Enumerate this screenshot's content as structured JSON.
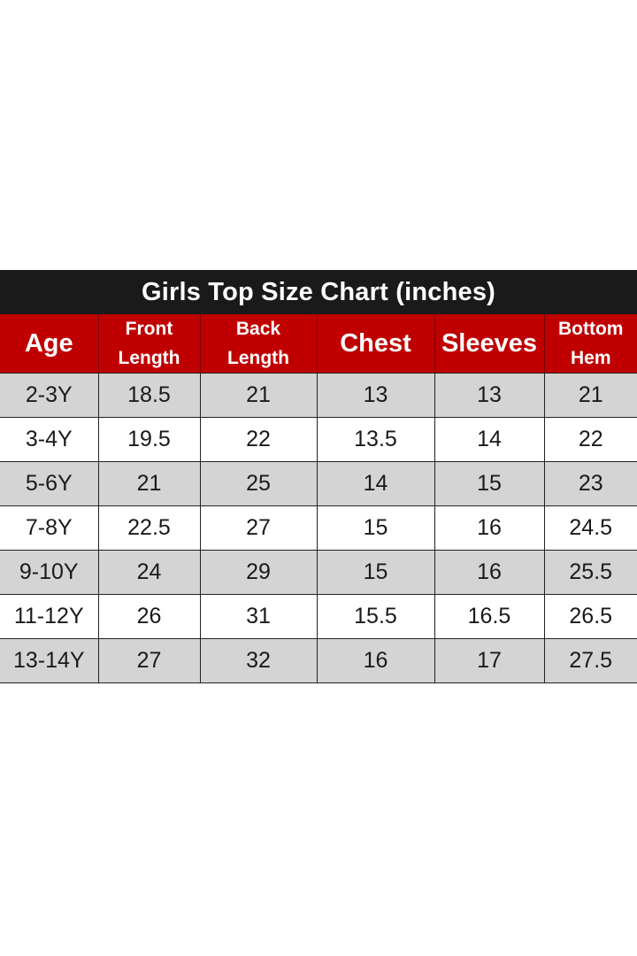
{
  "title": "Girls Top Size Chart (inches)",
  "headers": [
    {
      "lines": [
        "Age"
      ]
    },
    {
      "lines": [
        "Front",
        "Length"
      ]
    },
    {
      "lines": [
        "Back",
        "Length"
      ]
    },
    {
      "lines": [
        "Chest"
      ]
    },
    {
      "lines": [
        "Sleeves"
      ]
    },
    {
      "lines": [
        "Bottom",
        "Hem"
      ]
    }
  ],
  "rows": [
    [
      "2-3Y",
      "18.5",
      "21",
      "13",
      "13",
      "21"
    ],
    [
      "3-4Y",
      "19.5",
      "22",
      "13.5",
      "14",
      "22"
    ],
    [
      "5-6Y",
      "21",
      "25",
      "14",
      "15",
      "23"
    ],
    [
      "7-8Y",
      "22.5",
      "27",
      "15",
      "16",
      "24.5"
    ],
    [
      "9-10Y",
      "24",
      "29",
      "15",
      "16",
      "25.5"
    ],
    [
      "11-12Y",
      "26",
      "31",
      "15.5",
      "16.5",
      "26.5"
    ],
    [
      "13-14Y",
      "27",
      "32",
      "16",
      "17",
      "27.5"
    ]
  ],
  "colors": {
    "title_bg": "#1a1a1a",
    "header_bg": "#c00000",
    "row_shade": "#d4d4d4",
    "row_plain": "#ffffff"
  }
}
